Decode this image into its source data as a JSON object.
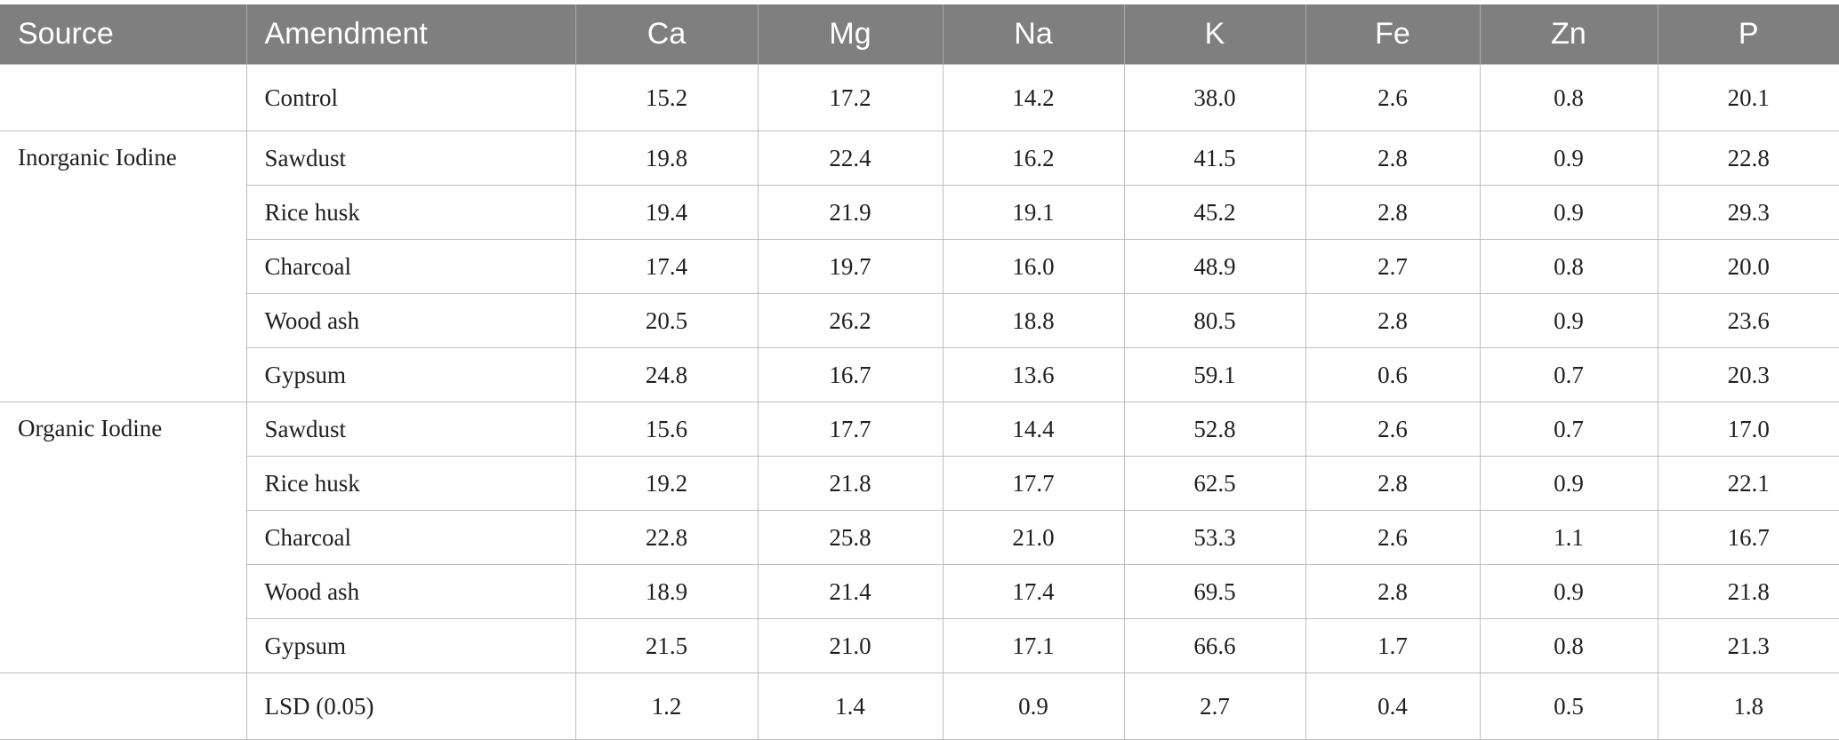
{
  "table": {
    "headers": [
      "Source",
      "Amendment",
      "Ca",
      "Mg",
      "Na",
      "K",
      "Fe",
      "Zn",
      "P"
    ],
    "groups": [
      {
        "source": "",
        "rows": [
          {
            "amendment": "Control",
            "values": [
              "15.2",
              "17.2",
              "14.2",
              "38.0",
              "2.6",
              "0.8",
              "20.1"
            ]
          }
        ]
      },
      {
        "source": "Inorganic Iodine",
        "rows": [
          {
            "amendment": "Sawdust",
            "values": [
              "19.8",
              "22.4",
              "16.2",
              "41.5",
              "2.8",
              "0.9",
              "22.8"
            ]
          },
          {
            "amendment": "Rice husk",
            "values": [
              "19.4",
              "21.9",
              "19.1",
              "45.2",
              "2.8",
              "0.9",
              "29.3"
            ]
          },
          {
            "amendment": "Charcoal",
            "values": [
              "17.4",
              "19.7",
              "16.0",
              "48.9",
              "2.7",
              "0.8",
              "20.0"
            ]
          },
          {
            "amendment": "Wood ash",
            "values": [
              "20.5",
              "26.2",
              "18.8",
              "80.5",
              "2.8",
              "0.9",
              "23.6"
            ]
          },
          {
            "amendment": "Gypsum",
            "values": [
              "24.8",
              "16.7",
              "13.6",
              "59.1",
              "0.6",
              "0.7",
              "20.3"
            ]
          }
        ]
      },
      {
        "source": "Organic Iodine",
        "rows": [
          {
            "amendment": "Sawdust",
            "values": [
              "15.6",
              "17.7",
              "14.4",
              "52.8",
              "2.6",
              "0.7",
              "17.0"
            ]
          },
          {
            "amendment": "Rice husk",
            "values": [
              "19.2",
              "21.8",
              "17.7",
              "62.5",
              "2.8",
              "0.9",
              "22.1"
            ]
          },
          {
            "amendment": "Charcoal",
            "values": [
              "22.8",
              "25.8",
              "21.0",
              "53.3",
              "2.6",
              "1.1",
              "16.7"
            ]
          },
          {
            "amendment": "Wood ash",
            "values": [
              "18.9",
              "21.4",
              "17.4",
              "69.5",
              "2.8",
              "0.9",
              "21.8"
            ]
          },
          {
            "amendment": "Gypsum",
            "values": [
              "21.5",
              "21.0",
              "17.1",
              "66.6",
              "1.7",
              "0.8",
              "21.3"
            ]
          }
        ]
      },
      {
        "source": "",
        "rows": [
          {
            "amendment": "LSD (0.05)",
            "values": [
              "1.2",
              "1.4",
              "0.9",
              "2.7",
              "0.4",
              "0.5",
              "1.8"
            ]
          }
        ]
      }
    ]
  },
  "colors": {
    "header_background": "#7f7f7f",
    "header_text": "#ffffff",
    "grid_line": "#bdbdbd"
  }
}
